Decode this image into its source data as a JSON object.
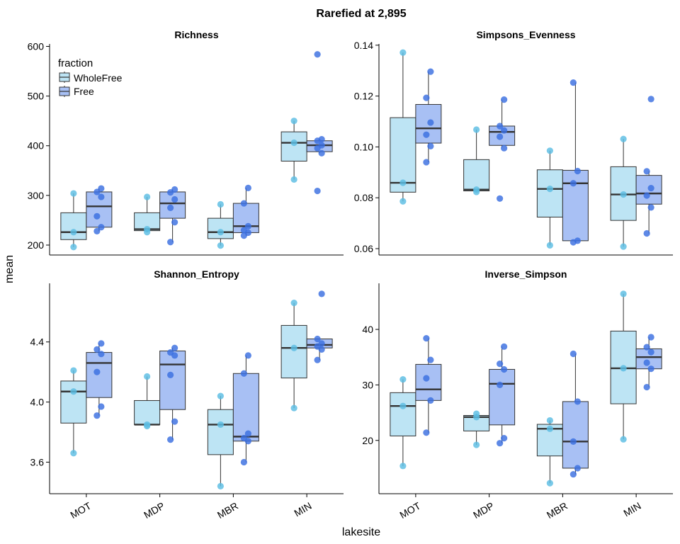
{
  "figure": {
    "title": "Rarefied at 2,895",
    "xlabel": "lakesite",
    "ylabel": "mean",
    "legend": {
      "title": "fraction",
      "position": "top-left of first panel",
      "entries": [
        {
          "name": "WholeFree",
          "color": "#bde4f4"
        },
        {
          "name": "Free",
          "color": "#a8c0f4"
        }
      ]
    },
    "colors": {
      "wholefree_box": "#bde4f4",
      "free_box": "#a8c0f4",
      "wholefree_point": "#5bbde3",
      "free_point": "#3a6fe0"
    }
  },
  "chart_data": [
    {
      "type": "box",
      "title": "Richness",
      "categories": [
        "MOT",
        "MDP",
        "MBR",
        "MIN"
      ],
      "ylim": [
        180,
        605
      ],
      "yticks": [
        200,
        300,
        400,
        500,
        600
      ],
      "ytick_labels": [
        "200",
        "300",
        "400",
        "500",
        "600"
      ],
      "show_xticks": false,
      "series": [
        {
          "name": "WholeFree",
          "boxes": [
            {
              "min": 196,
              "q1": 211,
              "median": 226,
              "q3": 265,
              "max": 304,
              "points": [
                196,
                226,
                304
              ]
            },
            {
              "min": 226,
              "q1": 229,
              "median": 232,
              "q3": 265,
              "max": 297,
              "points": [
                226,
                232,
                297
              ]
            },
            {
              "min": 199,
              "q1": 213,
              "median": 226,
              "q3": 254,
              "max": 282,
              "points": [
                199,
                226,
                282
              ]
            },
            {
              "min": 332,
              "q1": 369,
              "median": 406,
              "q3": 428,
              "max": 450,
              "points": [
                332,
                406,
                450
              ]
            }
          ]
        },
        {
          "name": "Free",
          "boxes": [
            {
              "min": 228,
              "q1": 236,
              "median": 278,
              "q3": 307,
              "max": 314,
              "points": [
                228,
                236,
                258,
                297,
                307,
                314
              ]
            },
            {
              "min": 206,
              "q1": 254,
              "median": 284,
              "q3": 307,
              "max": 312,
              "points": [
                206,
                246,
                275,
                292,
                306,
                312
              ]
            },
            {
              "min": 219,
              "q1": 225,
              "median": 238,
              "q3": 284,
              "max": 315,
              "points": [
                219,
                225,
                230,
                238,
                284,
                315
              ]
            },
            {
              "min": 385,
              "q1": 388,
              "median": 401,
              "q3": 410,
              "max": 413,
              "points": [
                309,
                385,
                395,
                401,
                410,
                413,
                584
              ]
            }
          ]
        }
      ]
    },
    {
      "type": "box",
      "title": "Simpsons_Evenness",
      "categories": [
        "MOT",
        "MDP",
        "MBR",
        "MIN"
      ],
      "ylim": [
        0.0575,
        0.1405
      ],
      "yticks": [
        0.06,
        0.08,
        0.1,
        0.12,
        0.14
      ],
      "ytick_labels": [
        "0.06",
        "0.08",
        "0.10",
        "0.12",
        "0.14"
      ],
      "show_xticks": false,
      "series": [
        {
          "name": "WholeFree",
          "boxes": [
            {
              "min": 0.0786,
              "q1": 0.0822,
              "median": 0.0859,
              "q3": 0.1115,
              "max": 0.1371,
              "points": [
                0.0786,
                0.0859,
                0.1371
              ]
            },
            {
              "min": 0.0823,
              "q1": 0.0827,
              "median": 0.0832,
              "q3": 0.095,
              "max": 0.1068,
              "points": [
                0.0823,
                0.0832,
                0.1068
              ]
            },
            {
              "min": 0.0613,
              "q1": 0.0724,
              "median": 0.0835,
              "q3": 0.091,
              "max": 0.0985,
              "points": [
                0.0613,
                0.0835,
                0.0985
              ]
            },
            {
              "min": 0.0608,
              "q1": 0.0711,
              "median": 0.0813,
              "q3": 0.0922,
              "max": 0.1031,
              "points": [
                0.0608,
                0.0813,
                0.1031
              ]
            }
          ]
        },
        {
          "name": "Free",
          "boxes": [
            {
              "min": 0.094,
              "q1": 0.1015,
              "median": 0.1073,
              "q3": 0.1167,
              "max": 0.1296,
              "points": [
                0.094,
                0.1003,
                0.1048,
                0.1096,
                0.1193,
                0.1296
              ]
            },
            {
              "min": 0.0998,
              "q1": 0.1006,
              "median": 0.1059,
              "q3": 0.1082,
              "max": 0.1186,
              "points": [
                0.0797,
                0.0995,
                0.104,
                0.1065,
                0.1082,
                0.1186
              ]
            },
            {
              "min": 0.0625,
              "q1": 0.0631,
              "median": 0.0857,
              "q3": 0.0908,
              "max": 0.1253,
              "points": [
                0.0625,
                0.0631,
                0.0857,
                0.0905,
                0.1253
              ]
            },
            {
              "min": 0.066,
              "q1": 0.0775,
              "median": 0.0817,
              "q3": 0.0888,
              "max": 0.0904,
              "points": [
                0.066,
                0.0762,
                0.0809,
                0.0838,
                0.0904,
                0.1188
              ]
            }
          ]
        }
      ]
    },
    {
      "type": "box",
      "title": "Shannon_Entropy",
      "categories": [
        "MOT",
        "MDP",
        "MBR",
        "MIN"
      ],
      "ylim": [
        3.39,
        4.79
      ],
      "yticks": [
        3.6,
        4.0,
        4.4
      ],
      "ytick_labels": [
        "3.6",
        "4.0",
        "4.4"
      ],
      "show_xticks": true,
      "series": [
        {
          "name": "WholeFree",
          "boxes": [
            {
              "min": 3.66,
              "q1": 3.86,
              "median": 4.07,
              "q3": 4.14,
              "max": 4.21,
              "points": [
                3.66,
                4.07,
                4.21
              ]
            },
            {
              "min": 3.84,
              "q1": 3.85,
              "median": 3.85,
              "q3": 4.01,
              "max": 4.17,
              "points": [
                3.84,
                3.85,
                4.17
              ]
            },
            {
              "min": 3.44,
              "q1": 3.65,
              "median": 3.85,
              "q3": 3.95,
              "max": 4.04,
              "points": [
                3.44,
                3.85,
                4.04
              ]
            },
            {
              "min": 3.96,
              "q1": 4.16,
              "median": 4.36,
              "q3": 4.51,
              "max": 4.66,
              "points": [
                3.96,
                4.36,
                4.66
              ]
            }
          ]
        },
        {
          "name": "Free",
          "boxes": [
            {
              "min": 3.91,
              "q1": 4.03,
              "median": 4.26,
              "q3": 4.33,
              "max": 4.39,
              "points": [
                3.91,
                3.97,
                4.2,
                4.32,
                4.35,
                4.39
              ]
            },
            {
              "min": 3.75,
              "q1": 3.95,
              "median": 4.25,
              "q3": 4.34,
              "max": 4.36,
              "points": [
                3.75,
                3.87,
                4.18,
                4.31,
                4.33,
                4.36
              ]
            },
            {
              "min": 3.6,
              "q1": 3.74,
              "median": 3.77,
              "q3": 4.19,
              "max": 4.31,
              "points": [
                3.6,
                3.74,
                3.76,
                3.79,
                4.19,
                4.31
              ]
            },
            {
              "min": 4.28,
              "q1": 4.36,
              "median": 4.38,
              "q3": 4.42,
              "max": 4.42,
              "points": [
                4.28,
                4.35,
                4.37,
                4.39,
                4.42,
                4.72
              ]
            }
          ]
        }
      ]
    },
    {
      "type": "box",
      "title": "Inverse_Simpson",
      "categories": [
        "MOT",
        "MDP",
        "MBR",
        "MIN"
      ],
      "ylim": [
        10.4,
        48.3
      ],
      "yticks": [
        20,
        30,
        40
      ],
      "ytick_labels": [
        "20",
        "30",
        "40"
      ],
      "show_xticks": true,
      "series": [
        {
          "name": "WholeFree",
          "boxes": [
            {
              "min": 15.4,
              "q1": 20.8,
              "median": 26.2,
              "q3": 28.6,
              "max": 31.0,
              "points": [
                15.4,
                26.2,
                31.0
              ]
            },
            {
              "min": 19.2,
              "q1": 21.7,
              "median": 24.2,
              "q3": 24.5,
              "max": 24.8,
              "points": [
                19.2,
                24.2,
                24.8
              ]
            },
            {
              "min": 12.3,
              "q1": 17.2,
              "median": 22.1,
              "q3": 22.9,
              "max": 23.6,
              "points": [
                12.3,
                22.1,
                23.6
              ]
            },
            {
              "min": 20.2,
              "q1": 26.6,
              "median": 33.0,
              "q3": 39.7,
              "max": 46.4,
              "points": [
                20.2,
                33.0,
                46.4
              ]
            }
          ]
        },
        {
          "name": "Free",
          "boxes": [
            {
              "min": 21.4,
              "q1": 27.2,
              "median": 29.2,
              "q3": 33.7,
              "max": 38.4,
              "points": [
                21.4,
                27.2,
                31.2,
                34.5,
                38.4
              ]
            },
            {
              "min": 19.5,
              "q1": 22.8,
              "median": 30.2,
              "q3": 32.8,
              "max": 36.9,
              "points": [
                19.5,
                20.4,
                30.0,
                32.8,
                33.8,
                36.9
              ]
            },
            {
              "min": 13.9,
              "q1": 15.0,
              "median": 19.8,
              "q3": 27.0,
              "max": 35.6,
              "points": [
                13.9,
                15.0,
                19.8,
                27.0,
                35.6
              ]
            },
            {
              "min": 29.6,
              "q1": 32.9,
              "median": 35.0,
              "q3": 36.5,
              "max": 38.6,
              "points": [
                29.6,
                32.9,
                34.0,
                35.9,
                36.8,
                38.6
              ]
            }
          ]
        }
      ]
    }
  ]
}
